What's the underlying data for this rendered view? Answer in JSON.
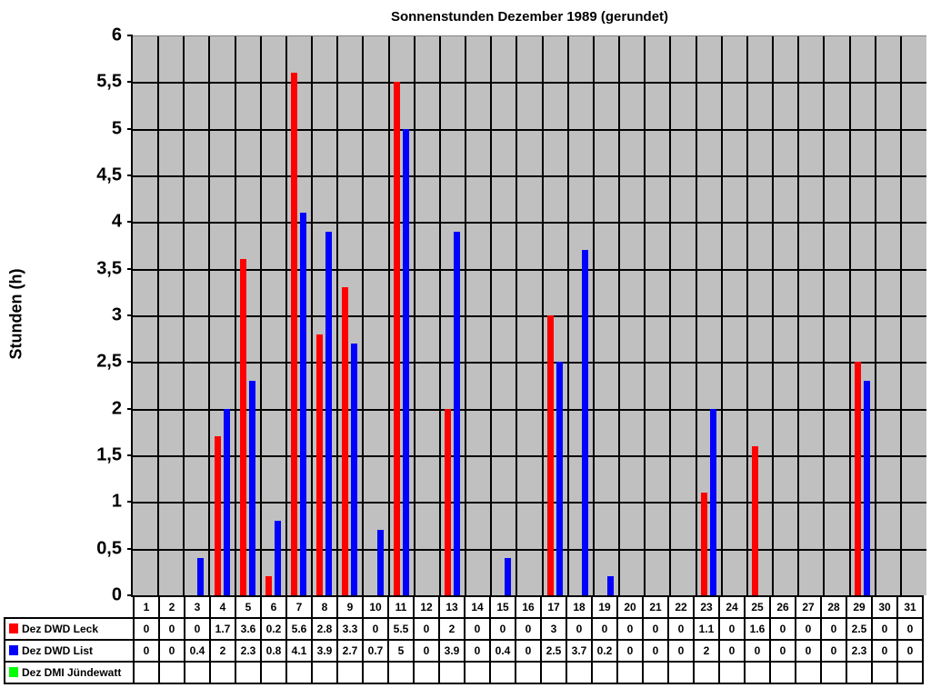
{
  "chart": {
    "title": "Sonnenstunden Dezember 1989 (gerundet)",
    "ylabel": "Stunden (h)",
    "yticks": [
      "0",
      "0,5",
      "1",
      "1,5",
      "2",
      "2,5",
      "3",
      "3,5",
      "4",
      "4,5",
      "5",
      "5,5",
      "6"
    ]
  },
  "colors": {
    "plot_background": "#c0c0c0",
    "leck": "#ff0000",
    "list": "#0000ff",
    "juendewatt": "#00ff00"
  },
  "legend": {
    "leck": "Dez DWD Leck",
    "list": "Dez DWD List",
    "juendewatt": "Dez DMI Jündewatt"
  },
  "chart_data": {
    "type": "bar",
    "title": "Sonnenstunden Dezember 1989 (gerundet)",
    "xlabel": "",
    "ylabel": "Stunden (h)",
    "ylim": [
      0,
      6
    ],
    "ytick_step": 0.5,
    "grid": true,
    "legend_position": "bottom data table",
    "categories": [
      "1",
      "2",
      "3",
      "4",
      "5",
      "6",
      "7",
      "8",
      "9",
      "10",
      "11",
      "12",
      "13",
      "14",
      "15",
      "16",
      "17",
      "18",
      "19",
      "20",
      "21",
      "22",
      "23",
      "24",
      "25",
      "26",
      "27",
      "28",
      "29",
      "30",
      "31"
    ],
    "series": [
      {
        "name": "Dez DWD Leck",
        "color": "#ff0000",
        "values": [
          0,
          0,
          0,
          1.7,
          3.6,
          0.2,
          5.6,
          2.8,
          3.3,
          0,
          5.5,
          0,
          2,
          0,
          0,
          0,
          3,
          0,
          0,
          0,
          0,
          0,
          1.1,
          0,
          1.6,
          0,
          0,
          0,
          2.5,
          0,
          0
        ]
      },
      {
        "name": "Dez DWD List",
        "color": "#0000ff",
        "values": [
          0,
          0,
          0.4,
          2,
          2.3,
          0.8,
          4.1,
          3.9,
          2.7,
          0.7,
          5,
          0,
          3.9,
          0,
          0.4,
          0,
          2.5,
          3.7,
          0.2,
          0,
          0,
          0,
          2,
          0,
          0,
          0,
          0,
          0,
          2.3,
          0,
          0
        ]
      },
      {
        "name": "Dez DMI Jündewatt",
        "color": "#00ff00",
        "values": [
          null,
          null,
          null,
          null,
          null,
          null,
          null,
          null,
          null,
          null,
          null,
          null,
          null,
          null,
          null,
          null,
          null,
          null,
          null,
          null,
          null,
          null,
          null,
          null,
          null,
          null,
          null,
          null,
          null,
          null,
          null
        ]
      }
    ]
  },
  "table": {
    "leck_display": [
      "0",
      "0",
      "0",
      "1.7",
      "3.6",
      "0.2",
      "5.6",
      "2.8",
      "3.3",
      "0",
      "5.5",
      "0",
      "2",
      "0",
      "0",
      "0",
      "3",
      "0",
      "0",
      "0",
      "0",
      "0",
      "1.1",
      "0",
      "1.6",
      "0",
      "0",
      "0",
      "2.5",
      "0",
      "0"
    ],
    "list_display": [
      "0",
      "0",
      "0.4",
      "2",
      "2.3",
      "0.8",
      "4.1",
      "3.9",
      "2.7",
      "0.7",
      "5",
      "0",
      "3.9",
      "0",
      "0.4",
      "0",
      "2.5",
      "3.7",
      "0.2",
      "0",
      "0",
      "0",
      "2",
      "0",
      "0",
      "0",
      "0",
      "0",
      "2.3",
      "0",
      "0"
    ]
  }
}
